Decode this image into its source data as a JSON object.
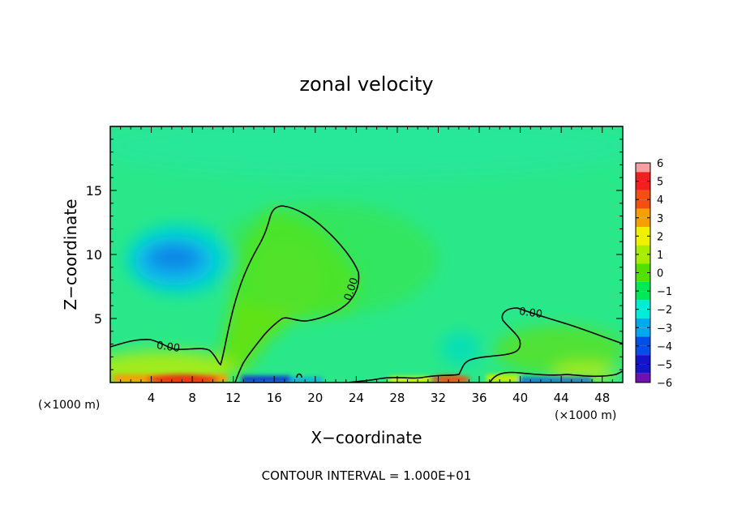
{
  "chart_data": {
    "type": "heatmap",
    "title": "zonal velocity",
    "xlabel": "X−coordinate",
    "ylabel": "Z−coordinate",
    "x_unit_left": "(×1000 m)",
    "x_unit_right": "(×1000 m)",
    "footer": "CONTOUR INTERVAL = 1.000E+01",
    "xlim": [
      0,
      50
    ],
    "ylim": [
      0,
      20
    ],
    "x_ticks": [
      4,
      8,
      12,
      16,
      20,
      24,
      28,
      32,
      36,
      40,
      44,
      48
    ],
    "y_ticks": [
      5,
      10,
      15
    ],
    "contour_label": "0.00",
    "colorbar": {
      "levels": [
        6,
        5,
        4,
        3,
        2,
        1,
        0,
        -1,
        -2,
        -3,
        -4,
        -5,
        -6
      ],
      "labels": [
        "6",
        "5",
        "4",
        "3",
        "2",
        "1",
        "0",
        "−1",
        "−2",
        "−3",
        "−4",
        "−5",
        "−6"
      ],
      "colors": [
        "#f4a0a0",
        "#f02020",
        "#f25010",
        "#f5a000",
        "#f0f000",
        "#a8ec00",
        "#52e000",
        "#00e858",
        "#00ecd8",
        "#00a8f0",
        "#0050e8",
        "#1414c8",
        "#7010b0"
      ]
    },
    "background_color": "#2ae88a"
  }
}
